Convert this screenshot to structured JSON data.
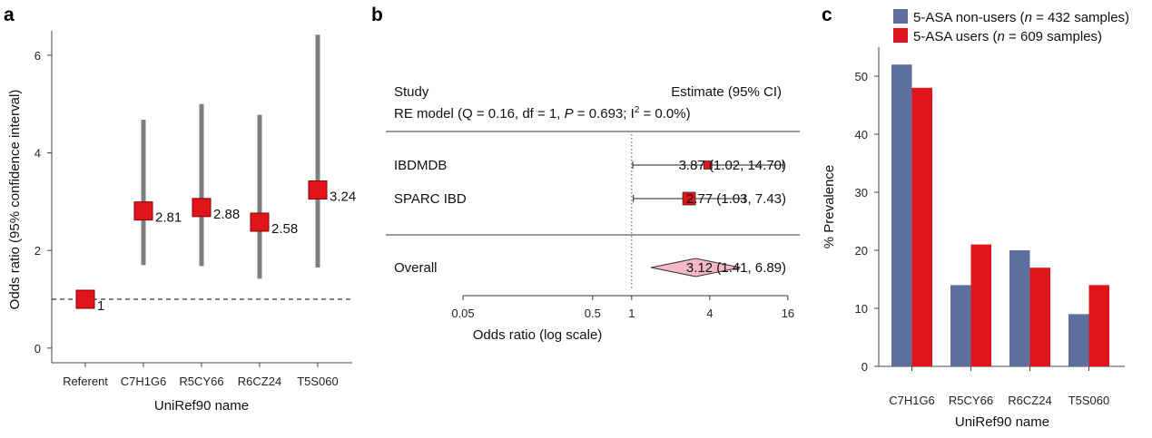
{
  "colors": {
    "red": "#E0151B",
    "red_edge": "#8B0000",
    "blue": "#5E6E9E",
    "ci_gray": "#7F7F7F",
    "diamond": "#F7B9C7",
    "axis": "#444444"
  },
  "panels": {
    "a": {
      "letter": "a"
    },
    "b": {
      "letter": "b"
    },
    "c": {
      "letter": "c"
    }
  },
  "chart_data": [
    {
      "panel": "a",
      "type": "scatter",
      "xlabel": "UniRef90 name",
      "ylabel": "Odds ratio (95% confidence interval)",
      "categories": [
        "Referent",
        "C7H1G6",
        "R5CY66",
        "R6CZ24",
        "T5S060"
      ],
      "values": [
        1,
        2.81,
        2.88,
        2.58,
        3.24
      ],
      "value_labels": [
        "1",
        "2.81",
        "2.88",
        "2.58",
        "3.24"
      ],
      "ci_low": [
        null,
        1.7,
        1.68,
        1.42,
        1.65
      ],
      "ci_high": [
        null,
        4.68,
        5.0,
        4.78,
        6.42
      ],
      "ylim": [
        -0.3,
        6.5
      ],
      "yticks": [
        0,
        2,
        4,
        6
      ],
      "reference_line": 1
    },
    {
      "panel": "b",
      "type": "forest",
      "header_left": "Study",
      "header_right": "Estimate (95% CI)",
      "re_model": {
        "prefix": "RE model (Q = 0.16, df = 1, ",
        "p_symbol": "P",
        "p_value": " = 0.693; I",
        "superscript": "2",
        "suffix": " = 0.0%)"
      },
      "studies": [
        {
          "name": "IBDMDB",
          "estimate": 3.87,
          "ci_low": 1.02,
          "ci_high": 14.7,
          "label": "3.87 (1.02, 14.70)"
        },
        {
          "name": "SPARC IBD",
          "estimate": 2.77,
          "ci_low": 1.03,
          "ci_high": 7.43,
          "label": "2.77 (1.03,  7.43)"
        }
      ],
      "overall": {
        "name": "Overall",
        "estimate": 3.12,
        "ci_low": 1.41,
        "ci_high": 6.89,
        "label": "3.12 (1.41,  6.89)"
      },
      "xscale": "log",
      "xticks": [
        0.05,
        0.5,
        1,
        4,
        16
      ],
      "xtick_labels": [
        "0.05",
        "0.5",
        "1",
        "4",
        "16"
      ],
      "xlabel": "Odds ratio (log scale)",
      "reference_line": 1
    },
    {
      "panel": "c",
      "type": "bar",
      "categories": [
        "C7H1G6",
        "R5CY66",
        "R6CZ24",
        "T5S060"
      ],
      "series": [
        {
          "name": "5-ASA non-users (n = 432 samples)",
          "legend_prefix": "5-ASA non-users (",
          "legend_n": "n",
          "legend_suffix": " = 432 samples)",
          "values": [
            52,
            14,
            20,
            9
          ]
        },
        {
          "name": "5-ASA users (n = 609 samples)",
          "legend_prefix": "5-ASA users (",
          "legend_n": "n",
          "legend_suffix": " = 609 samples)",
          "values": [
            48,
            21,
            17,
            14
          ]
        }
      ],
      "xlabel": "UniRef90 name",
      "ylabel": "% Prevalence",
      "ylim": [
        0,
        55
      ],
      "yticks": [
        0,
        10,
        20,
        30,
        40,
        50
      ],
      "legend_position": "top"
    }
  ]
}
